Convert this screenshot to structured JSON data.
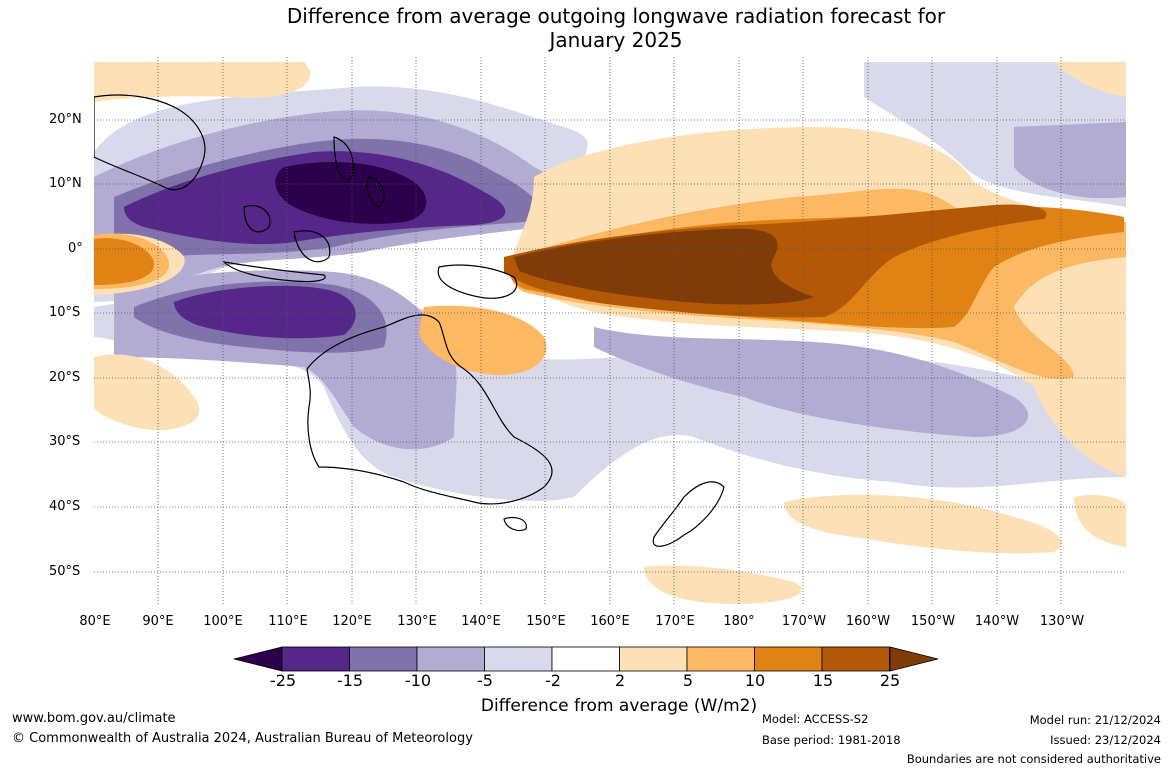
{
  "title": {
    "line1": "Difference from average outgoing longwave radiation forecast for",
    "line2": "January 2025"
  },
  "map": {
    "latitude_labels": [
      "20°N",
      "10°N",
      "0°",
      "10°S",
      "20°S",
      "30°S",
      "40°S",
      "50°S"
    ],
    "longitude_labels": [
      "80°E",
      "90°E",
      "100°E",
      "110°E",
      "120°E",
      "130°E",
      "140°E",
      "150°E",
      "160°E",
      "170°E",
      "180°",
      "170°W",
      "160°W",
      "150°W",
      "140°W",
      "130°W"
    ]
  },
  "legend": {
    "ticks": [
      "-25",
      "-15",
      "-10",
      "-5",
      "-2",
      "2",
      "5",
      "10",
      "15",
      "25"
    ],
    "colors": [
      "#2d004b",
      "#542788",
      "#8073ac",
      "#b2abd2",
      "#d8daeb",
      "#ffffff",
      "#fee0b6",
      "#fdb863",
      "#e08214",
      "#b35806",
      "#7f3b08"
    ],
    "label": "Difference from average (W/m2)"
  },
  "footer": {
    "website": "www.bom.gov.au/climate",
    "copyright": "© Commonwealth of Australia 2024, Australian Bureau of Meteorology",
    "model": "Model: ACCESS-S2",
    "base_period": "Base period: 1981-2018",
    "model_run": "Model run: 21/12/2024",
    "issued": "Issued: 23/12/2024",
    "disclaimer": "Boundaries are not considered authoritative"
  }
}
